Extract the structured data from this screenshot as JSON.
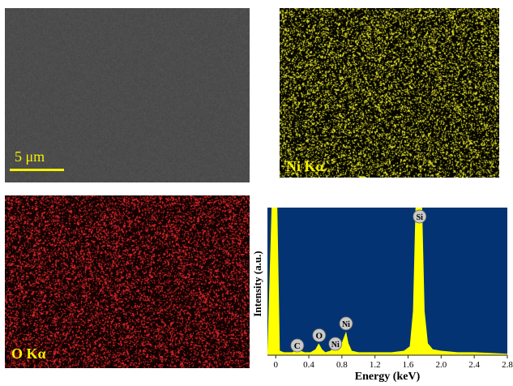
{
  "sem_panel": {
    "scale_bar_label": "5 μm"
  },
  "ni_map": {
    "label": "Ni Kα",
    "dot_color": "#e8e62c",
    "bg_color": "#070700"
  },
  "o_map": {
    "label": "O Kα",
    "dot_color": "#e0262a",
    "bg_color": "#120202"
  },
  "colors": {
    "scale_bar": "#f4f000",
    "ni_label": "#f4f000",
    "o_label": "#f4f000",
    "spectrum_bg": "#043373",
    "spectrum_fill": "#ffff00"
  },
  "chart_data": {
    "type": "area",
    "title": "",
    "xlabel": "Energy (keV)",
    "ylabel": "Intensity (a.u.)",
    "xlim": [
      -0.1,
      2.8
    ],
    "ylim": [
      0,
      100
    ],
    "xticks": [
      "0",
      "0.4",
      "0.8",
      "1.2",
      "1.6",
      "2.0",
      "2.4",
      "2.8"
    ],
    "xtick_values": [
      0,
      0.4,
      0.8,
      1.2,
      1.6,
      2.0,
      2.4,
      2.8
    ],
    "peaks": [
      {
        "label": "C",
        "energy": 0.28,
        "intensity": 5
      },
      {
        "label": "O",
        "energy": 0.525,
        "intensity": 8
      },
      {
        "label": "Ni",
        "energy": 0.74,
        "intensity": 6
      },
      {
        "label": "Ni",
        "energy": 0.85,
        "intensity": 16
      },
      {
        "label": "Si",
        "energy": 1.74,
        "intensity": 100
      }
    ],
    "series": [
      {
        "x": [
          -0.1,
          -0.05,
          -0.02,
          0.0,
          0.02,
          0.05,
          0.1,
          0.2,
          0.26,
          0.28,
          0.3,
          0.35,
          0.42,
          0.48,
          0.52,
          0.56,
          0.6,
          0.66,
          0.7,
          0.74,
          0.78,
          0.81,
          0.85,
          0.88,
          0.92,
          1.0,
          1.2,
          1.4,
          1.55,
          1.62,
          1.66,
          1.69,
          1.72,
          1.74,
          1.77,
          1.8,
          1.84,
          1.9,
          2.0,
          2.2,
          2.4,
          2.6,
          2.8
        ],
        "y": [
          2,
          100,
          100,
          100,
          100,
          3,
          2,
          2,
          4,
          5,
          3,
          2,
          2,
          4,
          8,
          4,
          2,
          3,
          5,
          6,
          5,
          10,
          16,
          8,
          3,
          2,
          2,
          2,
          3,
          6,
          30,
          100,
          100,
          100,
          100,
          30,
          8,
          4,
          3,
          2,
          2,
          1.5,
          1
        ]
      }
    ]
  }
}
